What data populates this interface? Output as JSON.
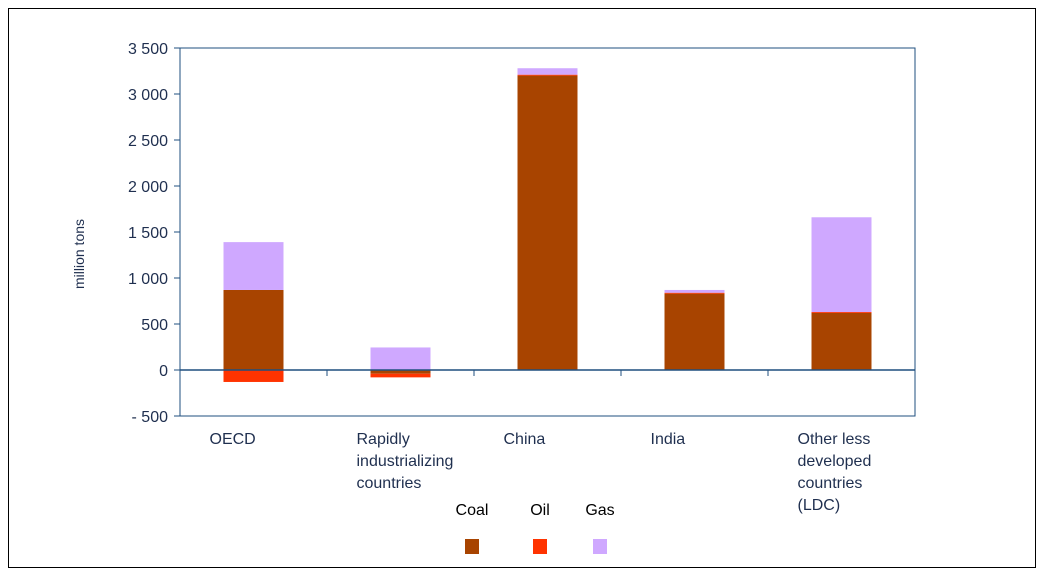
{
  "chart_data": {
    "type": "bar",
    "stacked": true,
    "ylabel": "million tons",
    "ylim": [
      -500,
      3500
    ],
    "yticks": [
      -500,
      0,
      500,
      1000,
      1500,
      2000,
      2500,
      3000,
      3500
    ],
    "ytick_labels": [
      "- 500",
      "0",
      "500",
      "1 000",
      "1 500",
      "2 000",
      "2 500",
      "3 000",
      "3 500"
    ],
    "categories": [
      [
        "OECD"
      ],
      [
        "Rapidly",
        "industrializing",
        "countries"
      ],
      [
        "China"
      ],
      [
        "India"
      ],
      [
        "Other less",
        "developed",
        "countries",
        "(LDC)"
      ]
    ],
    "series": [
      {
        "name": "Coal",
        "values": [
          870,
          -40,
          3200,
          830,
          620
        ]
      },
      {
        "name": "Oil",
        "values": [
          -130,
          -40,
          10,
          10,
          10
        ]
      },
      {
        "name": "Gas",
        "values": [
          520,
          245,
          70,
          30,
          1030
        ]
      }
    ],
    "legend": {
      "position": "bottom"
    }
  },
  "colors": {
    "coal": "#a84400",
    "oil": "#ff3300",
    "gas": "#cfa8ff",
    "axis": "#1f4f7f",
    "text": "#1f2f4f"
  }
}
